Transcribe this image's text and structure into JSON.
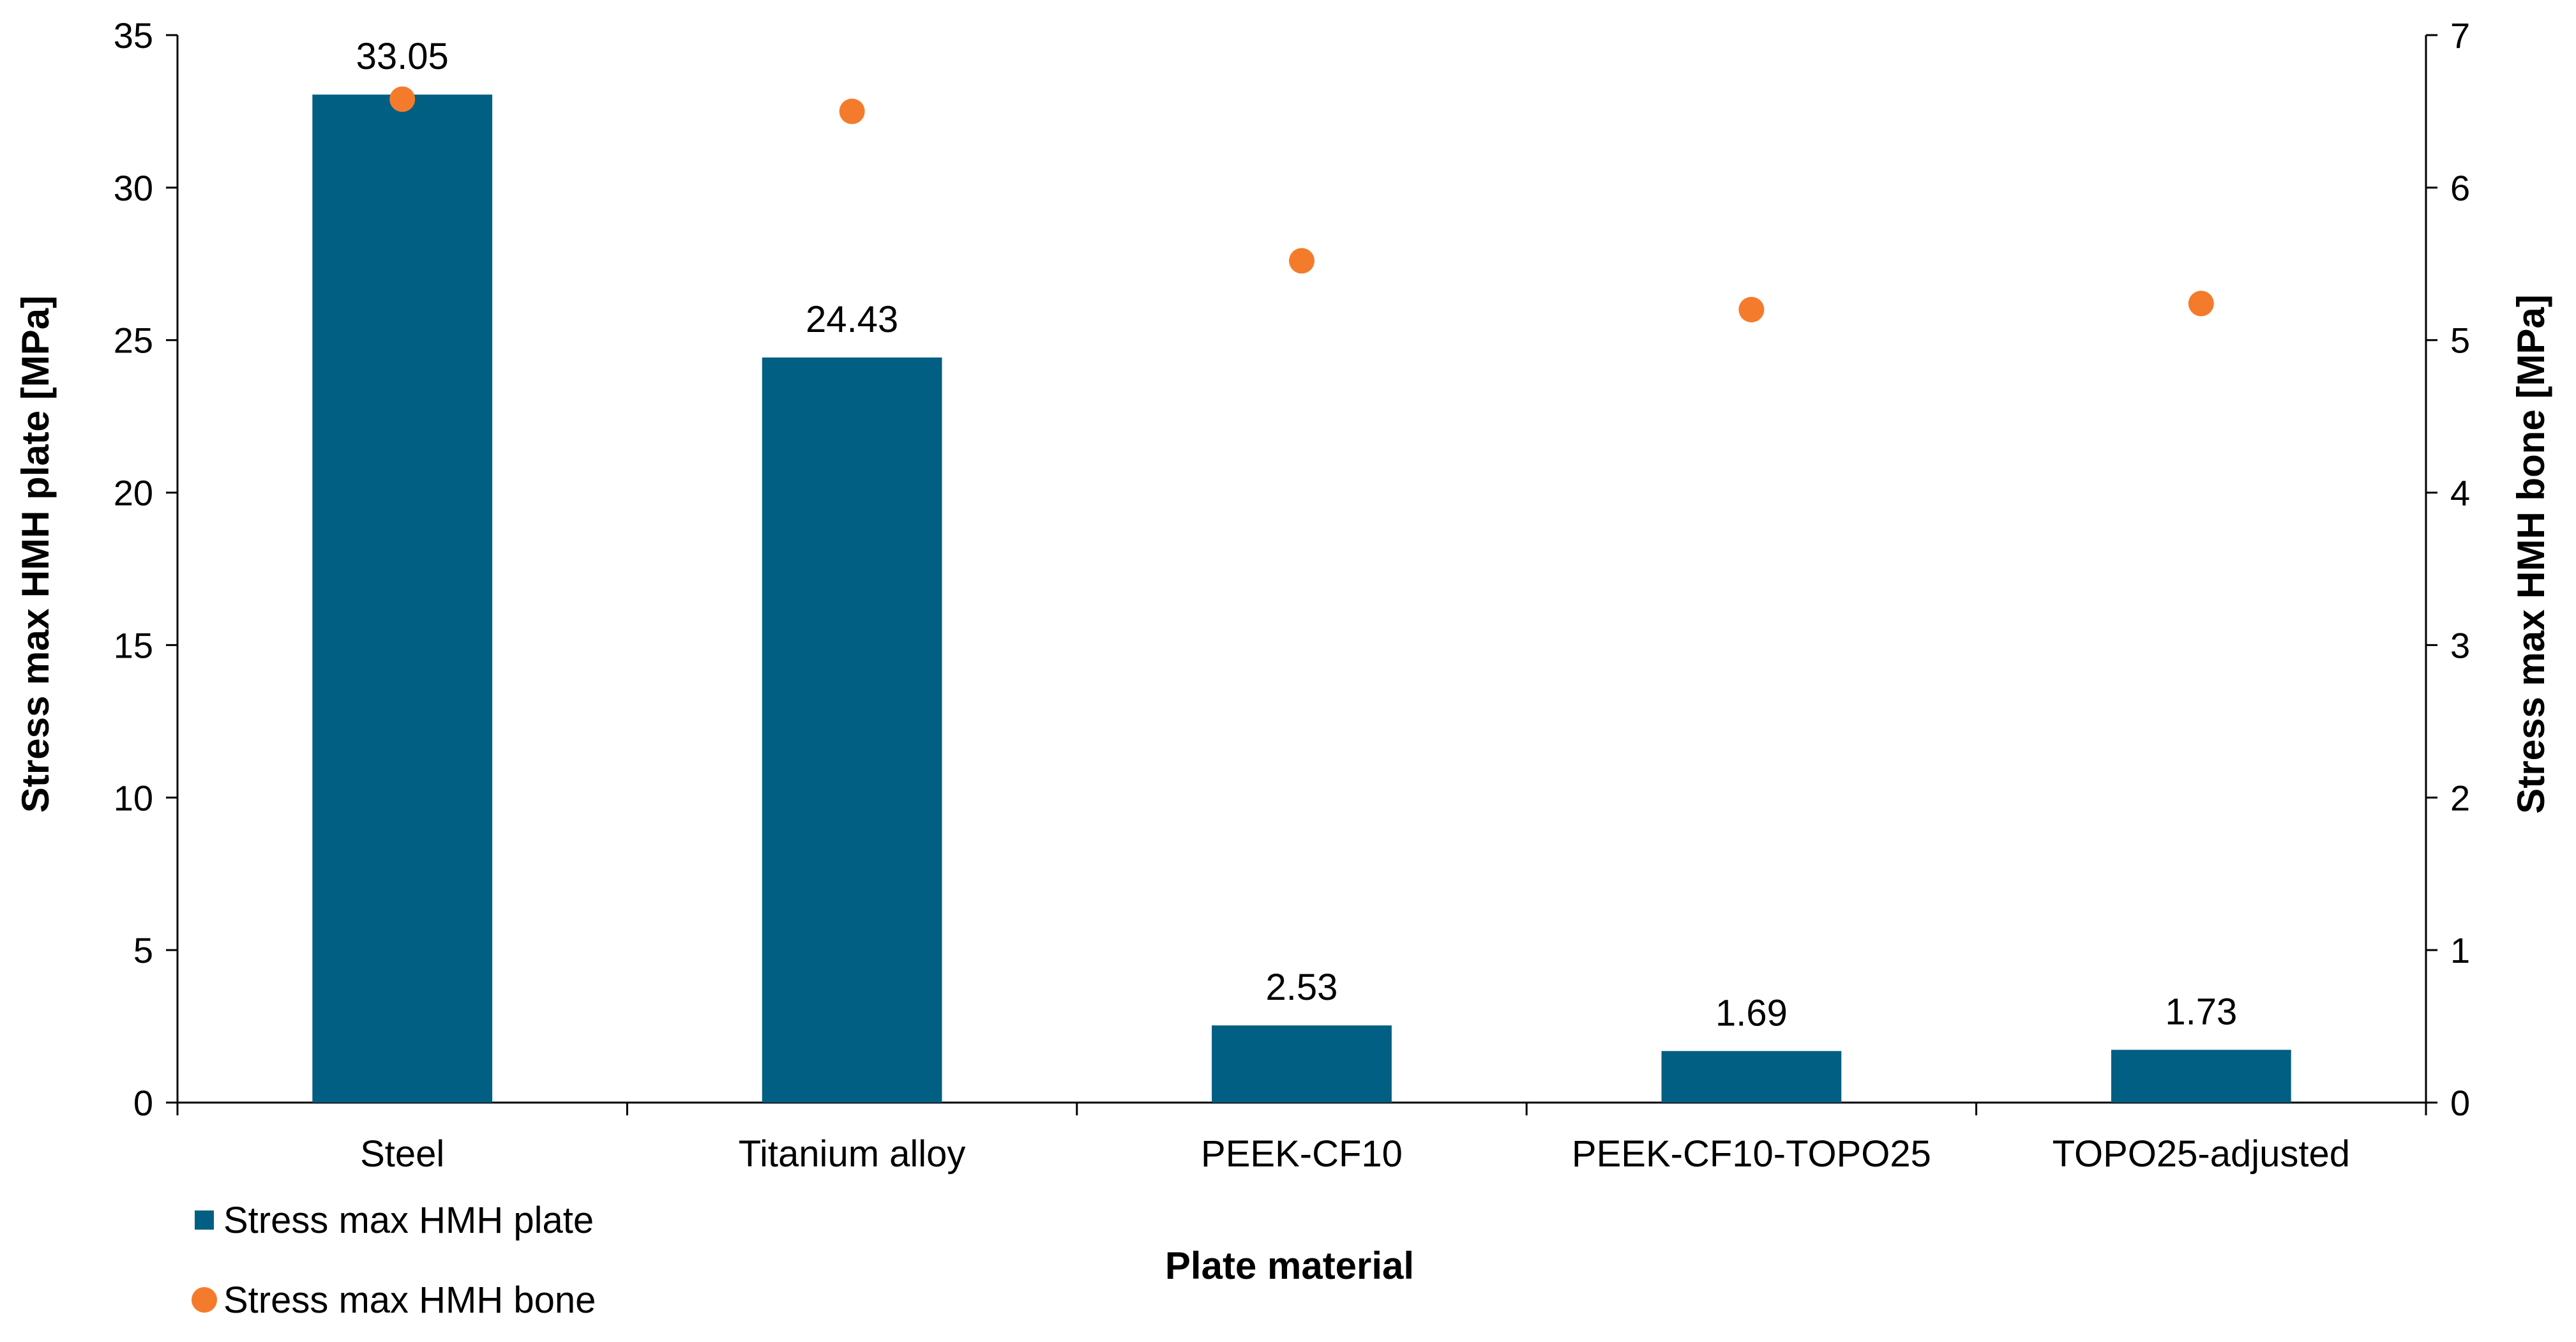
{
  "chart_data": {
    "type": "bar",
    "title": "",
    "xlabel": "Plate material",
    "ylabel": "Stress max HMH plate [MPa]",
    "y2label": "Stress max HMH bone [MPa]",
    "categories": [
      "Steel",
      "Titanium alloy",
      "PEEK-CF10",
      "PEEK-CF10-TOPO25",
      "TOPO25-adjusted"
    ],
    "ylim": [
      0,
      35
    ],
    "y2lim": [
      0,
      7
    ],
    "yticks": [
      "0",
      "5",
      "10",
      "15",
      "20",
      "25",
      "30",
      "35"
    ],
    "y2ticks": [
      "0",
      "1",
      "2",
      "3",
      "4",
      "5",
      "6",
      "7"
    ],
    "grid": false,
    "legend_position": "bottom-left",
    "series": [
      {
        "name": "Stress max HMH plate",
        "type": "bar",
        "axis": "left",
        "color": "#005F83",
        "values": [
          33.05,
          24.43,
          2.53,
          1.69,
          1.73
        ],
        "labels": [
          "33.05",
          "24.43",
          "2.53",
          "1.69",
          "1.73"
        ]
      },
      {
        "name": "Stress max HMH bone",
        "type": "scatter",
        "axis": "right",
        "color": "#F47B2C",
        "values": [
          6.58,
          6.5,
          5.52,
          5.2,
          5.24
        ]
      }
    ]
  }
}
